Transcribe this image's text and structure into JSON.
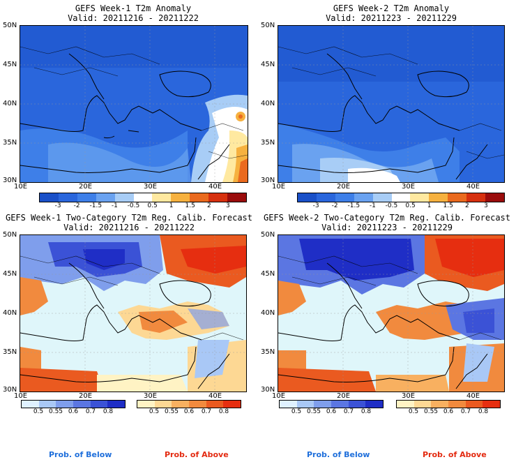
{
  "panels": [
    {
      "title": "GEFS Week-1 T2m Anomaly",
      "valid": "Valid: 20211216 - 20211222"
    },
    {
      "title": "GEFS Week-2 T2m Anomaly",
      "valid": "Valid: 20211223 - 20211229"
    },
    {
      "title": "GEFS Week-1 Two-Category T2m Reg. Calib. Forecast",
      "valid": "Valid: 20211216 - 20211222"
    },
    {
      "title": "GEFS Week-2 Two-Category T2m Reg. Calib. Forecast",
      "valid": "Valid: 20211223 - 20211229"
    }
  ],
  "axes": {
    "lat_labels": [
      "50N",
      "45N",
      "40N",
      "35N",
      "30N"
    ],
    "lon_labels": [
      "10E",
      "20E",
      "30E",
      "40E"
    ]
  },
  "anomaly_colorbar": {
    "labels": [
      "-3",
      "-2",
      "-1.5",
      "-1",
      "-0.5",
      "0.5",
      "1",
      "1.5",
      "2",
      "3"
    ],
    "colors": [
      "#1a50c8",
      "#2a66dc",
      "#3e7fe8",
      "#6aa2f0",
      "#a8cdf6",
      "#ffffff",
      "#ffe9a0",
      "#f6b13f",
      "#ea6a1e",
      "#d6300e",
      "#9a0c0c"
    ]
  },
  "prob_below_colorbar": {
    "labels": [
      "0.5",
      "0.55",
      "0.6",
      "0.7",
      "0.8"
    ],
    "colors": [
      "#dff1ff",
      "#a9c8f6",
      "#7f9eec",
      "#5b76e2",
      "#3b52d6",
      "#1f2ec6"
    ]
  },
  "prob_above_colorbar": {
    "labels": [
      "0.5",
      "0.55",
      "0.6",
      "0.7",
      "0.8"
    ],
    "colors": [
      "#fff3c4",
      "#fdd894",
      "#f8b060",
      "#f18a3e",
      "#ea5a20",
      "#e62e10"
    ]
  },
  "colors": {
    "sea_prob": "#dff6fa",
    "anom_base": "#2a66dc",
    "below_color": "#1f6fdb",
    "above_color": "#e32a10"
  },
  "footer": {
    "below_label": "Prob. of Below",
    "above_label": "Prob. of Above"
  }
}
